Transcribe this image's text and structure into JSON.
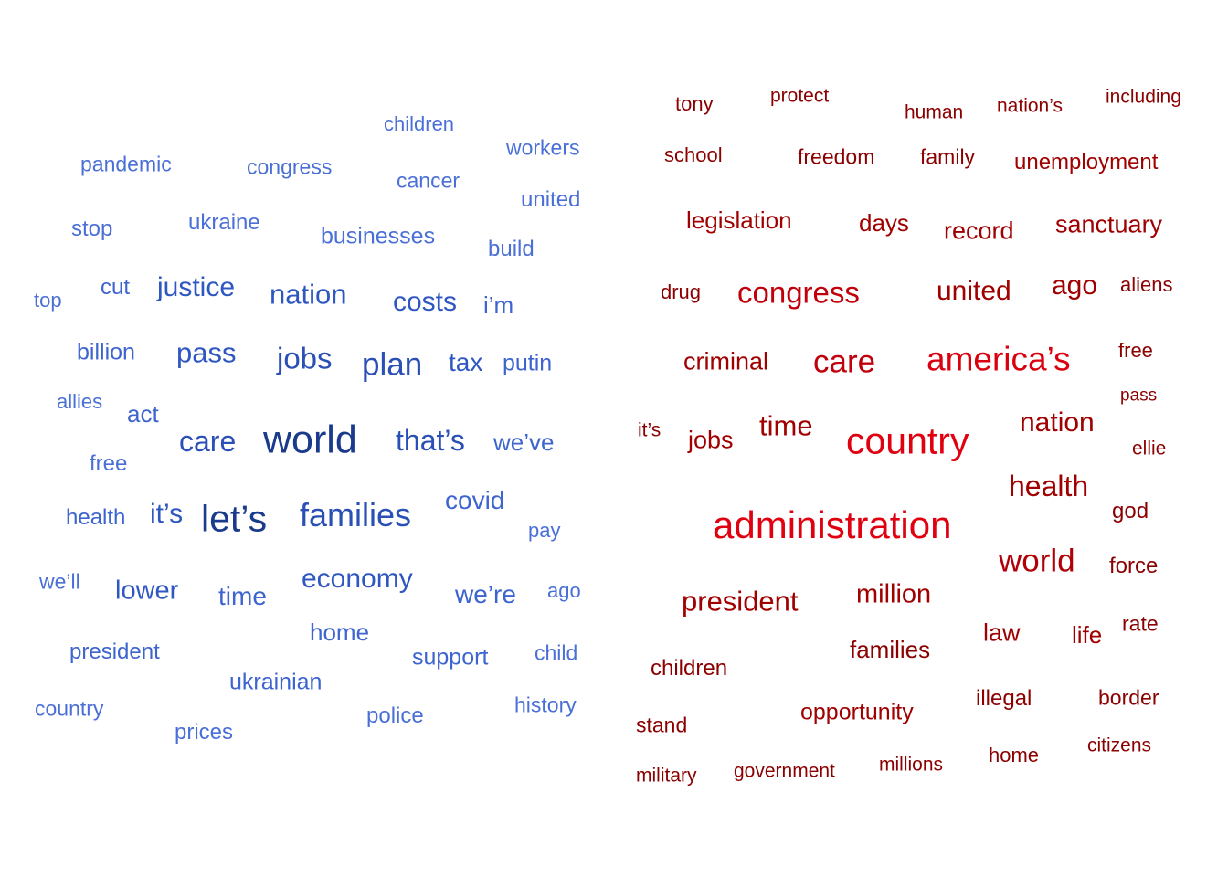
{
  "left_cloud": {
    "words": [
      {
        "text": "children",
        "size": 22,
        "color": "#4a6fd6"
      },
      {
        "text": "workers",
        "size": 23,
        "color": "#4a6fd6"
      },
      {
        "text": "pandemic",
        "size": 23,
        "color": "#4a6fd6"
      },
      {
        "text": "congress",
        "size": 23,
        "color": "#4a6fd6"
      },
      {
        "text": "cancer",
        "size": 23,
        "color": "#4a6fd6"
      },
      {
        "text": "united",
        "size": 24,
        "color": "#4a6fd6"
      },
      {
        "text": "stop",
        "size": 24,
        "color": "#4a6fd6"
      },
      {
        "text": "ukraine",
        "size": 24,
        "color": "#4a6fd6"
      },
      {
        "text": "businesses",
        "size": 25,
        "color": "#4a6fd6"
      },
      {
        "text": "build",
        "size": 24,
        "color": "#4a6fd6"
      },
      {
        "text": "top",
        "size": 22,
        "color": "#4a6fd6"
      },
      {
        "text": "cut",
        "size": 24,
        "color": "#3d64cf"
      },
      {
        "text": "justice",
        "size": 30,
        "color": "#2f57c1"
      },
      {
        "text": "nation",
        "size": 31,
        "color": "#2f57c1"
      },
      {
        "text": "costs",
        "size": 30,
        "color": "#2f57c1"
      },
      {
        "text": "i’m",
        "size": 26,
        "color": "#3d64cf"
      },
      {
        "text": "billion",
        "size": 25,
        "color": "#3d64cf"
      },
      {
        "text": "pass",
        "size": 31,
        "color": "#2f57c1"
      },
      {
        "text": "jobs",
        "size": 33,
        "color": "#2a4fb5"
      },
      {
        "text": "plan",
        "size": 35,
        "color": "#2a4fb5"
      },
      {
        "text": "tax",
        "size": 28,
        "color": "#2f57c1"
      },
      {
        "text": "putin",
        "size": 25,
        "color": "#3d64cf"
      },
      {
        "text": "allies",
        "size": 22,
        "color": "#4a6fd6"
      },
      {
        "text": "act",
        "size": 26,
        "color": "#3d64cf"
      },
      {
        "text": "care",
        "size": 32,
        "color": "#2a4fb5"
      },
      {
        "text": "world",
        "size": 43,
        "color": "#1a3a8c"
      },
      {
        "text": "that’s",
        "size": 32,
        "color": "#2a4fb5"
      },
      {
        "text": "we’ve",
        "size": 26,
        "color": "#3d64cf"
      },
      {
        "text": "free",
        "size": 24,
        "color": "#4a6fd6"
      },
      {
        "text": "health",
        "size": 24,
        "color": "#3d64cf"
      },
      {
        "text": "it’s",
        "size": 30,
        "color": "#2f57c1"
      },
      {
        "text": "let’s",
        "size": 41,
        "color": "#1a3a8c"
      },
      {
        "text": "families",
        "size": 36,
        "color": "#2a4fb5"
      },
      {
        "text": "covid",
        "size": 28,
        "color": "#3d64cf"
      },
      {
        "text": "pay",
        "size": 22,
        "color": "#4a6fd6"
      },
      {
        "text": "we’ll",
        "size": 23,
        "color": "#4a6fd6"
      },
      {
        "text": "lower",
        "size": 29,
        "color": "#2f57c1"
      },
      {
        "text": "time",
        "size": 28,
        "color": "#3d64cf"
      },
      {
        "text": "economy",
        "size": 30,
        "color": "#2f57c1"
      },
      {
        "text": "we’re",
        "size": 28,
        "color": "#3d64cf"
      },
      {
        "text": "ago",
        "size": 22,
        "color": "#4a6fd6"
      },
      {
        "text": "home",
        "size": 26,
        "color": "#3d64cf"
      },
      {
        "text": "president",
        "size": 24,
        "color": "#3d64cf"
      },
      {
        "text": "support",
        "size": 25,
        "color": "#3d64cf"
      },
      {
        "text": "child",
        "size": 23,
        "color": "#4a6fd6"
      },
      {
        "text": "ukrainian",
        "size": 25,
        "color": "#3d64cf"
      },
      {
        "text": "country",
        "size": 23,
        "color": "#4a6fd6"
      },
      {
        "text": "police",
        "size": 24,
        "color": "#4a6fd6"
      },
      {
        "text": "history",
        "size": 23,
        "color": "#4a6fd6"
      },
      {
        "text": "prices",
        "size": 24,
        "color": "#4a6fd6"
      }
    ]
  },
  "right_cloud": {
    "words": [
      {
        "text": "tony",
        "size": 22,
        "color": "#8b0000"
      },
      {
        "text": "protect",
        "size": 21,
        "color": "#8b0000"
      },
      {
        "text": "human",
        "size": 21,
        "color": "#8b0000"
      },
      {
        "text": "nation’s",
        "size": 21,
        "color": "#8b0000"
      },
      {
        "text": "including",
        "size": 21,
        "color": "#8b0000"
      },
      {
        "text": "school",
        "size": 22,
        "color": "#8b0000"
      },
      {
        "text": "freedom",
        "size": 23,
        "color": "#8b0000"
      },
      {
        "text": "family",
        "size": 23,
        "color": "#8b0000"
      },
      {
        "text": "unemployment",
        "size": 24,
        "color": "#a00000"
      },
      {
        "text": "legislation",
        "size": 26,
        "color": "#a00000"
      },
      {
        "text": "days",
        "size": 26,
        "color": "#a00000"
      },
      {
        "text": "record",
        "size": 27,
        "color": "#a00000"
      },
      {
        "text": "sanctuary",
        "size": 27,
        "color": "#a00000"
      },
      {
        "text": "drug",
        "size": 22,
        "color": "#8b0000"
      },
      {
        "text": "congress",
        "size": 33,
        "color": "#c0000a"
      },
      {
        "text": "united",
        "size": 30,
        "color": "#a00000"
      },
      {
        "text": "ago",
        "size": 30,
        "color": "#a00000"
      },
      {
        "text": "aliens",
        "size": 22,
        "color": "#8b0000"
      },
      {
        "text": "criminal",
        "size": 27,
        "color": "#a00000"
      },
      {
        "text": "care",
        "size": 35,
        "color": "#c0000a"
      },
      {
        "text": "america’s",
        "size": 37,
        "color": "#d90010"
      },
      {
        "text": "free",
        "size": 22,
        "color": "#8b0000"
      },
      {
        "text": "pass",
        "size": 19,
        "color": "#8b0000"
      },
      {
        "text": "it’s",
        "size": 21,
        "color": "#8b0000"
      },
      {
        "text": "jobs",
        "size": 27,
        "color": "#a00000"
      },
      {
        "text": "time",
        "size": 31,
        "color": "#a00000"
      },
      {
        "text": "country",
        "size": 41,
        "color": "#e00010"
      },
      {
        "text": "nation",
        "size": 30,
        "color": "#a00000"
      },
      {
        "text": "ellie",
        "size": 21,
        "color": "#8b0000"
      },
      {
        "text": "health",
        "size": 32,
        "color": "#a00000"
      },
      {
        "text": "god",
        "size": 24,
        "color": "#8b0000"
      },
      {
        "text": "administration",
        "size": 42,
        "color": "#e00010"
      },
      {
        "text": "world",
        "size": 35,
        "color": "#b00008"
      },
      {
        "text": "force",
        "size": 24,
        "color": "#8b0000"
      },
      {
        "text": "president",
        "size": 31,
        "color": "#a00000"
      },
      {
        "text": "million",
        "size": 29,
        "color": "#a00000"
      },
      {
        "text": "law",
        "size": 27,
        "color": "#a00000"
      },
      {
        "text": "life",
        "size": 26,
        "color": "#a00000"
      },
      {
        "text": "rate",
        "size": 23,
        "color": "#8b0000"
      },
      {
        "text": "families",
        "size": 26,
        "color": "#8b0000"
      },
      {
        "text": "children",
        "size": 24,
        "color": "#8b0000"
      },
      {
        "text": "illegal",
        "size": 24,
        "color": "#8b0000"
      },
      {
        "text": "border",
        "size": 23,
        "color": "#8b0000"
      },
      {
        "text": "opportunity",
        "size": 25,
        "color": "#a00000"
      },
      {
        "text": "stand",
        "size": 23,
        "color": "#8b0000"
      },
      {
        "text": "home",
        "size": 22,
        "color": "#8b0000"
      },
      {
        "text": "citizens",
        "size": 21,
        "color": "#8b0000"
      },
      {
        "text": "millions",
        "size": 21,
        "color": "#8b0000"
      },
      {
        "text": "military",
        "size": 21,
        "color": "#8b0000"
      },
      {
        "text": "government",
        "size": 21,
        "color": "#8b0000"
      }
    ]
  }
}
